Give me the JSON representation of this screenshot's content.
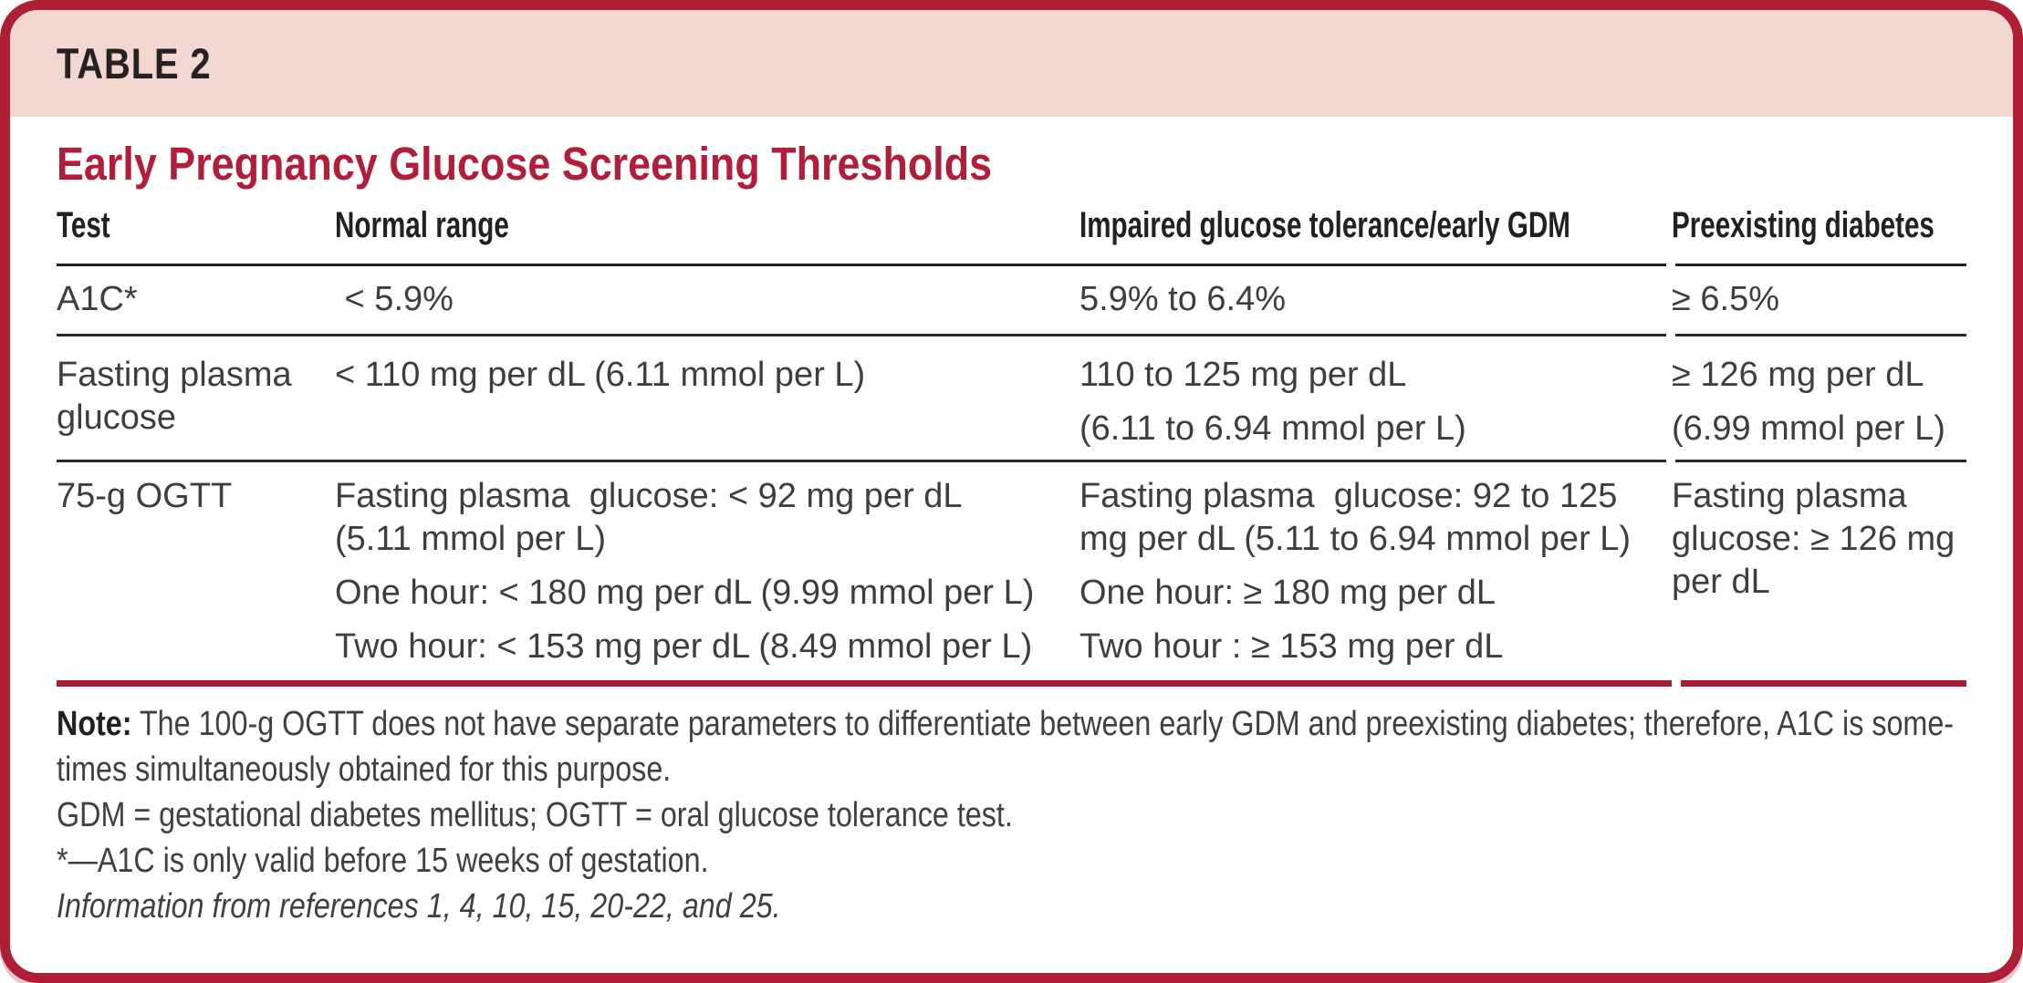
{
  "header": {
    "label": "TABLE 2"
  },
  "title": "Early Pregnancy Glucose Screening Thresholds",
  "table": {
    "columns": [
      "Test",
      "Normal range",
      "Impaired glucose tolerance/early GDM",
      "Preexisting diabetes"
    ],
    "rows": [
      {
        "test": [
          "A1C*"
        ],
        "normal": [
          " < 5.9%"
        ],
        "impaired": [
          "5.9% to 6.4%"
        ],
        "preexisting": [
          "≥ 6.5%"
        ]
      },
      {
        "test": [
          "Fasting plasma",
          "glucose"
        ],
        "normal": [
          "< 110 mg per dL (6.11 mmol per L)"
        ],
        "impaired": [
          "110 to 125 mg per dL",
          "(6.11 to 6.94 mmol per L)"
        ],
        "preexisting": [
          "≥ 126 mg per dL",
          "(6.99 mmol per L)"
        ]
      },
      {
        "test": [
          "75-g OGTT"
        ],
        "normal": [
          "Fasting plasma  glucose: < 92 mg per dL",
          "(5.11 mmol per L)",
          "One hour: < 180 mg per dL (9.99 mmol per L)",
          "Two hour: < 153 mg per dL (8.49 mmol per L)"
        ],
        "impaired": [
          "Fasting plasma  glucose: 92 to 125",
          "mg per dL (5.11 to 6.94 mmol per L)",
          "One hour: ≥ 180 mg per dL",
          "Two hour : ≥ 153 mg per dL"
        ],
        "preexisting": [
          "Fasting plasma",
          "glucose: ≥ 126 mg",
          "per dL"
        ]
      }
    ]
  },
  "notes": {
    "note_label": "Note:",
    "note_line1": " The 100-g OGTT does not have separate parameters to differentiate between early GDM and preexisting diabetes; therefore, A1C is some-",
    "note_line2": "times simultaneously obtained for this purpose.",
    "abbreviations": "GDM = gestational diabetes mellitus; OGTT = oral glucose tolerance test.",
    "footnote": "*—A1C is only valid before 15 weeks of gestation.",
    "source": "Information from references 1, 4, 10, 15, 20-22, and 25."
  },
  "colors": {
    "accent_red": "#b01e35",
    "band_pink": "#f2d8d0",
    "title_red": "#b11e3b",
    "rule_red": "#a41d33",
    "text_dark": "#242021",
    "text_body": "#3e3d40"
  }
}
